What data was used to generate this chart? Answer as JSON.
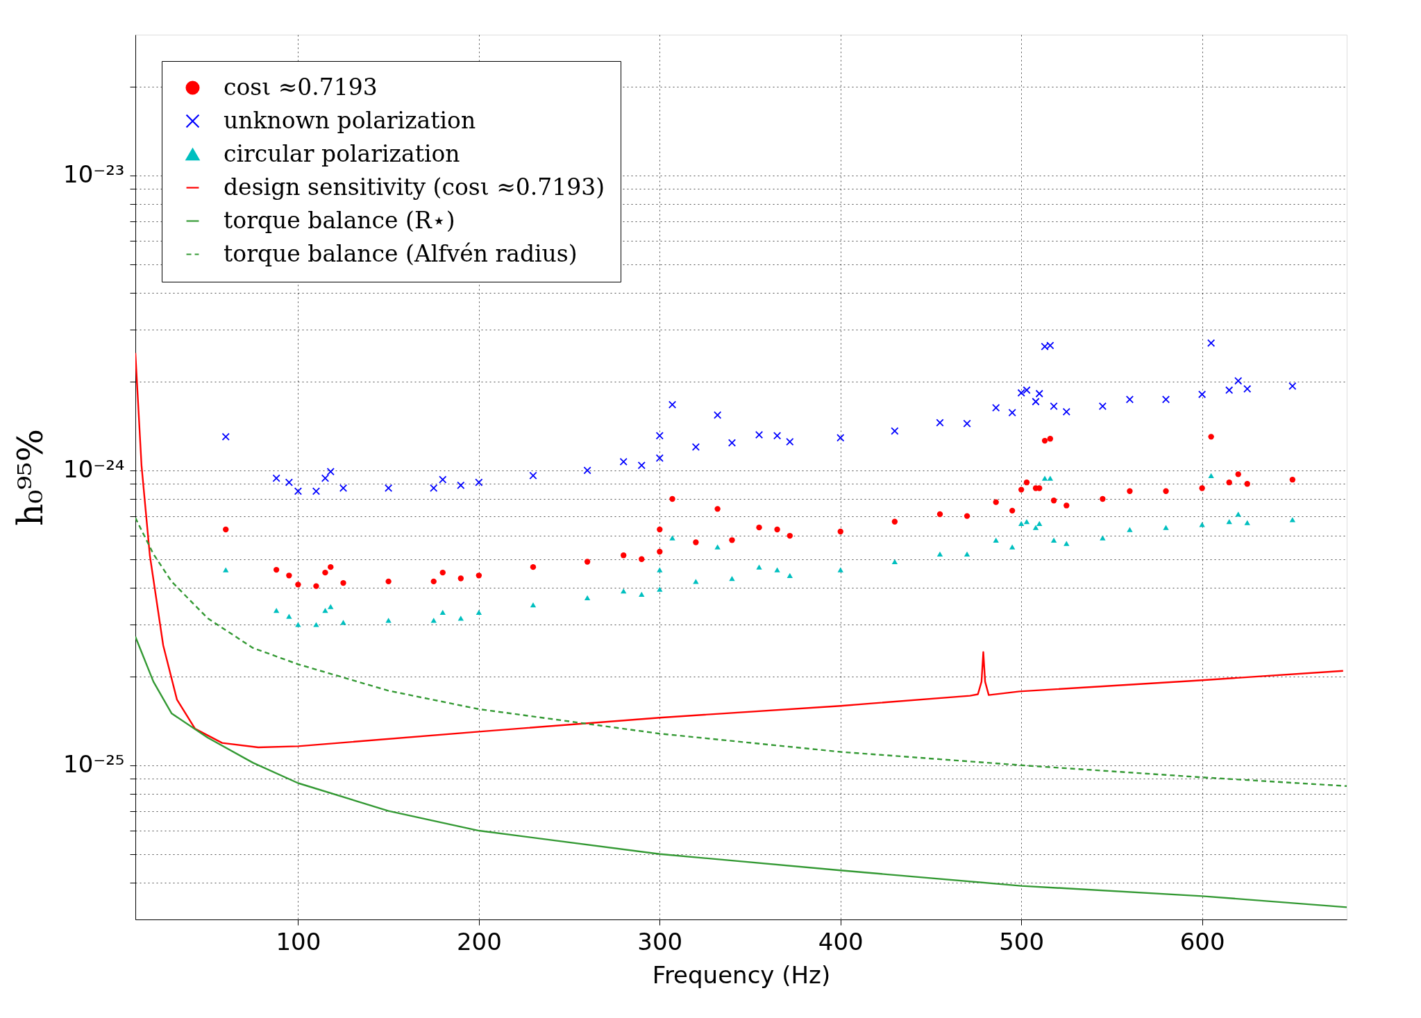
{
  "chart_data": {
    "type": "scatter",
    "xlabel": "Frequency (Hz)",
    "ylabel": "h₀⁹⁵%",
    "xlim": [
      10,
      680
    ],
    "xticks": [
      100,
      200,
      300,
      400,
      500,
      600
    ],
    "ylim": [
      3e-26,
      3e-23
    ],
    "log": "y",
    "grid": true,
    "legend": "top left",
    "yticks": [
      {
        "value": 4e-26,
        "label": null
      },
      {
        "value": 5e-26,
        "label": null
      },
      {
        "value": 6e-26,
        "label": null
      },
      {
        "value": 7e-26,
        "label": null
      },
      {
        "value": 8e-26,
        "label": null
      },
      {
        "value": 9e-26,
        "label": null
      },
      {
        "value": 1e-25,
        "label": "10⁻²⁵"
      },
      {
        "value": 2e-25,
        "label": null
      },
      {
        "value": 3e-25,
        "label": null
      },
      {
        "value": 4e-25,
        "label": null
      },
      {
        "value": 5e-25,
        "label": null
      },
      {
        "value": 6e-25,
        "label": null
      },
      {
        "value": 7e-25,
        "label": null
      },
      {
        "value": 8e-25,
        "label": null
      },
      {
        "value": 9e-25,
        "label": null
      },
      {
        "value": 1e-24,
        "label": "10⁻²⁴"
      },
      {
        "value": 2e-24,
        "label": null
      },
      {
        "value": 3e-24,
        "label": null
      },
      {
        "value": 4e-24,
        "label": null
      },
      {
        "value": 5e-24,
        "label": null
      },
      {
        "value": 6e-24,
        "label": null
      },
      {
        "value": 7e-24,
        "label": null
      },
      {
        "value": 8e-24,
        "label": null
      },
      {
        "value": 9e-24,
        "label": null
      },
      {
        "value": 1e-23,
        "label": "10⁻²³"
      },
      {
        "value": 2e-23,
        "label": null
      }
    ],
    "series": [
      {
        "name": "cosι ≈0.7193",
        "marker": "circle",
        "color": "#ff0000",
        "x": [
          60,
          88,
          95,
          100,
          110,
          115,
          118,
          125,
          150,
          175,
          180,
          190,
          200,
          230,
          260,
          280,
          290,
          300,
          300,
          307,
          320,
          332,
          340,
          355,
          365,
          372,
          400,
          430,
          455,
          470,
          486,
          495,
          500,
          503,
          508,
          510,
          513,
          516,
          518,
          525,
          545,
          560,
          580,
          600,
          605,
          615,
          620,
          625,
          650
        ],
        "values": [
          6.3e-25,
          4.6e-25,
          4.4e-25,
          4.1e-25,
          4.05e-25,
          4.5e-25,
          4.7e-25,
          4.15e-25,
          4.2e-25,
          4.2e-25,
          4.5e-25,
          4.3e-25,
          4.4e-25,
          4.7e-25,
          4.9e-25,
          5.15e-25,
          5e-25,
          6.3e-25,
          5.3e-25,
          8e-25,
          5.7e-25,
          7.4e-25,
          5.8e-25,
          6.4e-25,
          6.3e-25,
          6e-25,
          6.2e-25,
          6.7e-25,
          7.1e-25,
          7e-25,
          7.8e-25,
          7.3e-25,
          8.6e-25,
          9.1e-25,
          8.7e-25,
          8.7e-25,
          1.26e-24,
          1.28e-24,
          7.9e-25,
          7.6e-25,
          8e-25,
          8.5e-25,
          8.5e-25,
          8.7e-25,
          1.3e-24,
          9.1e-25,
          9.7e-25,
          9e-25,
          9.3e-25
        ]
      },
      {
        "name": "unknown polarization",
        "marker": "cross",
        "color": "#0000ff",
        "x": [
          60,
          88,
          95,
          100,
          110,
          115,
          118,
          125,
          150,
          175,
          180,
          190,
          200,
          230,
          260,
          280,
          290,
          300,
          300,
          307,
          320,
          332,
          340,
          355,
          365,
          372,
          400,
          430,
          455,
          470,
          486,
          495,
          500,
          503,
          508,
          510,
          513,
          516,
          518,
          525,
          545,
          560,
          580,
          600,
          605,
          615,
          620,
          625,
          650
        ],
        "values": [
          1.3e-24,
          9.4e-25,
          9.1e-25,
          8.5e-25,
          8.5e-25,
          9.4e-25,
          9.9e-25,
          8.7e-25,
          8.7e-25,
          8.7e-25,
          9.3e-25,
          8.9e-25,
          9.1e-25,
          9.6e-25,
          1e-24,
          1.07e-24,
          1.04e-24,
          1.31e-24,
          1.1e-24,
          1.67e-24,
          1.2e-24,
          1.54e-24,
          1.24e-24,
          1.32e-24,
          1.31e-24,
          1.25e-24,
          1.29e-24,
          1.36e-24,
          1.45e-24,
          1.44e-24,
          1.63e-24,
          1.57e-24,
          1.83e-24,
          1.87e-24,
          1.71e-24,
          1.82e-24,
          2.63e-24,
          2.65e-24,
          1.65e-24,
          1.58e-24,
          1.65e-24,
          1.74e-24,
          1.74e-24,
          1.81e-24,
          2.7e-24,
          1.87e-24,
          2.01e-24,
          1.89e-24,
          1.93e-24
        ]
      },
      {
        "name": "circular polarization",
        "marker": "triangle",
        "color": "#00bfbf",
        "x": [
          60,
          88,
          95,
          100,
          110,
          115,
          118,
          125,
          150,
          175,
          180,
          190,
          200,
          230,
          260,
          280,
          290,
          300,
          300,
          307,
          320,
          332,
          340,
          355,
          365,
          372,
          400,
          430,
          455,
          470,
          486,
          495,
          500,
          503,
          508,
          510,
          513,
          516,
          518,
          525,
          545,
          560,
          580,
          600,
          605,
          615,
          620,
          625,
          650
        ],
        "values": [
          4.6e-25,
          3.35e-25,
          3.2e-25,
          3e-25,
          3e-25,
          3.35e-25,
          3.45e-25,
          3.05e-25,
          3.1e-25,
          3.1e-25,
          3.3e-25,
          3.15e-25,
          3.3e-25,
          3.5e-25,
          3.7e-25,
          3.9e-25,
          3.8e-25,
          4.6e-25,
          3.95e-25,
          5.9e-25,
          4.2e-25,
          5.5e-25,
          4.3e-25,
          4.7e-25,
          4.6e-25,
          4.4e-25,
          4.6e-25,
          4.9e-25,
          5.2e-25,
          5.2e-25,
          5.8e-25,
          5.5e-25,
          6.6e-25,
          6.7e-25,
          6.4e-25,
          6.6e-25,
          9.4e-25,
          9.4e-25,
          5.8e-25,
          5.65e-25,
          5.9e-25,
          6.3e-25,
          6.4e-25,
          6.55e-25,
          9.6e-25,
          6.7e-25,
          7.1e-25,
          6.65e-25,
          6.8e-25
        ]
      },
      {
        "name": "design sensitivity (cosι ≈0.7193)",
        "type": "line",
        "line_style": "solid",
        "color": "#ff0000",
        "x": [
          10,
          13.4,
          18,
          25.4,
          33,
          43,
          58,
          78,
          100,
          200,
          300,
          400,
          471.6,
          476,
          478,
          479,
          480,
          482,
          499,
          598.5,
          678
        ],
        "values": [
          2.5e-24,
          1.04e-24,
          5.15e-25,
          2.55e-25,
          1.67e-25,
          1.33e-25,
          1.19e-25,
          1.15e-25,
          1.16e-25,
          1.3e-25,
          1.45e-25,
          1.59e-25,
          1.72e-25,
          1.74e-25,
          1.92e-25,
          2.42e-25,
          1.92e-25,
          1.73e-25,
          1.78e-25,
          1.94e-25,
          2.09e-25
        ]
      },
      {
        "name": "torque balance (R⋆)",
        "type": "line",
        "line_style": "solid",
        "color": "#339933",
        "x": [
          10,
          20,
          30,
          50,
          75,
          100,
          150,
          200,
          300,
          400,
          500,
          600,
          680
        ],
        "values": [
          2.73e-25,
          1.92e-25,
          1.5e-25,
          1.24e-25,
          1.02e-25,
          8.7e-26,
          7e-26,
          6e-26,
          5e-26,
          4.4e-26,
          3.9e-26,
          3.6e-26,
          3.3e-26
        ]
      },
      {
        "name": "torque balance (Alfvén radius)",
        "type": "line",
        "line_style": "dashed",
        "color": "#339933",
        "x": [
          10,
          20,
          30,
          50,
          75,
          100,
          150,
          200,
          300,
          400,
          500,
          600,
          680
        ],
        "values": [
          6.9e-25,
          5.2e-25,
          4.2e-25,
          3.15e-25,
          2.5e-25,
          2.2e-25,
          1.79e-25,
          1.55e-25,
          1.28e-25,
          1.11e-25,
          1e-25,
          9.1e-26,
          8.5e-26
        ]
      }
    ]
  }
}
